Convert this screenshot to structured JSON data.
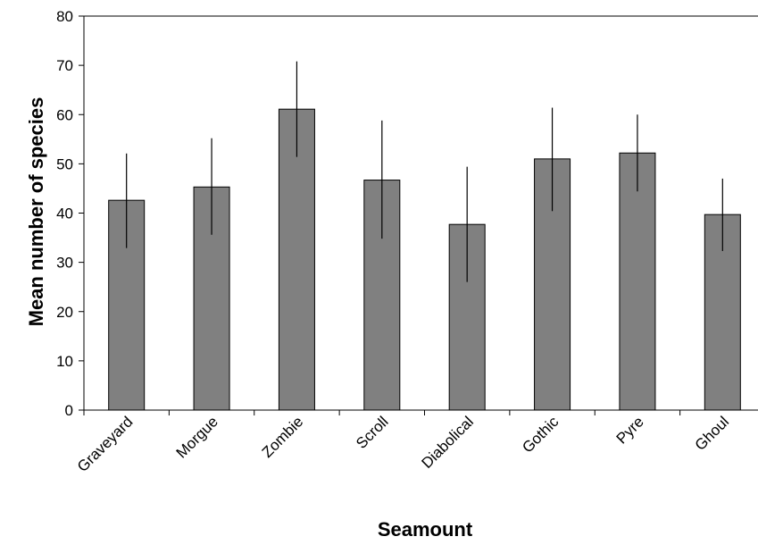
{
  "chart_data": {
    "type": "bar",
    "title": "",
    "xlabel": "Seamount",
    "ylabel": "Mean number of species",
    "ylim": [
      0,
      80
    ],
    "yticks": [
      0,
      10,
      20,
      30,
      40,
      50,
      60,
      70,
      80
    ],
    "categories": [
      "Graveyard",
      "Morgue",
      "Zombie",
      "Scroll",
      "Diabolical",
      "Gothic",
      "Pyre",
      "Ghoul"
    ],
    "values": [
      42.6,
      45.3,
      61.1,
      46.7,
      37.7,
      51.0,
      52.2,
      39.7
    ],
    "error_low": [
      32.9,
      35.6,
      51.4,
      34.8,
      26.0,
      40.4,
      44.4,
      32.3
    ],
    "error_high": [
      52.1,
      55.2,
      70.8,
      58.8,
      49.4,
      61.4,
      60.0,
      47.0
    ],
    "bar_color": "#808080",
    "grid": false
  }
}
